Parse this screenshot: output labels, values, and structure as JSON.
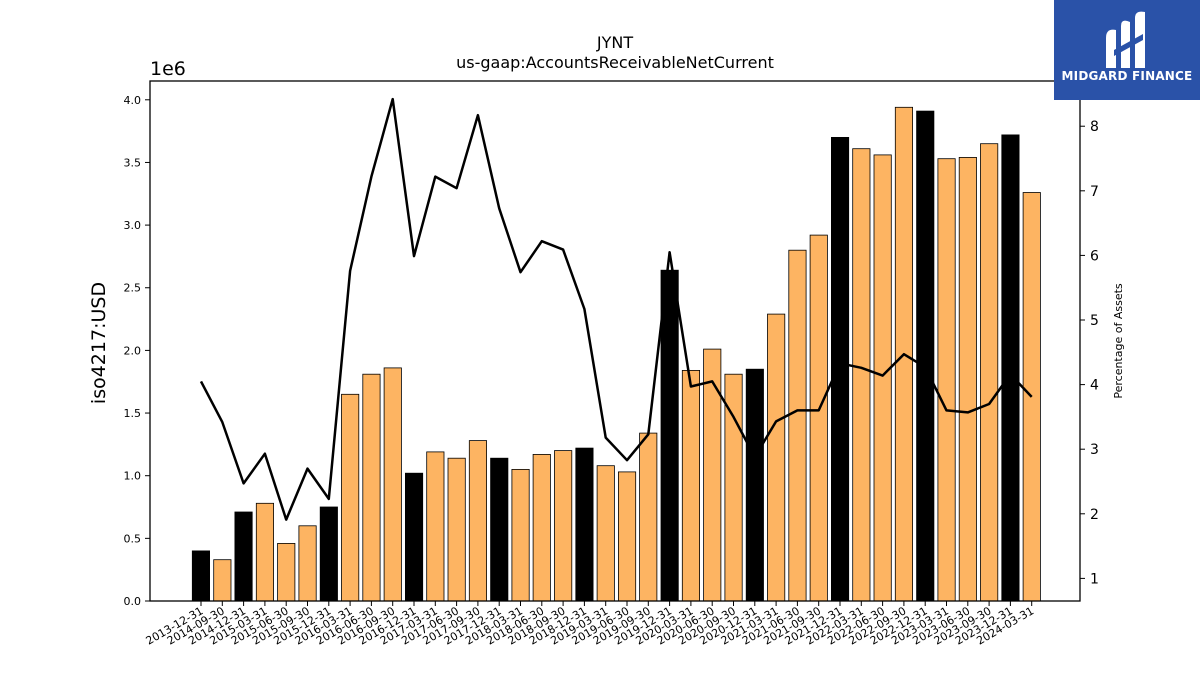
{
  "brand": {
    "name": "MIDGARD FINANCE",
    "background": "#2a52a8"
  },
  "chart_data": {
    "type": "bar",
    "title": "JYNT",
    "subtitle": "us-gaap:AccountsReceivableNetCurrent",
    "ylabel": "iso4217:USD",
    "y2label": "Percentage of Assets",
    "y_offset_text": "1e6",
    "ylim": [
      0,
      4.15
    ],
    "y2lim": [
      0.65,
      8.7
    ],
    "yticks": [
      "0.0",
      "0.5",
      "1.0",
      "1.5",
      "2.0",
      "2.5",
      "3.0",
      "3.5",
      "4.0"
    ],
    "y2ticks": [
      "1",
      "2",
      "3",
      "4",
      "5",
      "6",
      "7",
      "8"
    ],
    "colors": {
      "annual": "#000000",
      "quarter": "#fdb462",
      "line": "#000000"
    },
    "categories": [
      "2013-12-31",
      "2014-09-30",
      "2014-12-31",
      "2015-03-31",
      "2015-06-30",
      "2015-09-30",
      "2015-12-31",
      "2016-03-31",
      "2016-06-30",
      "2016-09-30",
      "2016-12-31",
      "2017-03-31",
      "2017-06-30",
      "2017-09-30",
      "2017-12-31",
      "2018-03-31",
      "2018-06-30",
      "2018-09-30",
      "2018-12-31",
      "2019-03-31",
      "2019-06-30",
      "2019-09-30",
      "2019-12-31",
      "2020-03-31",
      "2020-06-30",
      "2020-09-30",
      "2020-12-31",
      "2021-03-31",
      "2021-06-30",
      "2021-09-30",
      "2021-12-31",
      "2022-03-31",
      "2022-06-30",
      "2022-09-30",
      "2022-12-31",
      "2023-03-31",
      "2023-06-30",
      "2023-09-30",
      "2023-12-31",
      "2024-03-31"
    ],
    "series": [
      {
        "values": [
          0.4,
          0.33,
          0.71,
          0.78,
          0.46,
          0.6,
          0.75,
          1.65,
          1.81,
          1.86,
          1.02,
          1.19,
          1.14,
          1.28,
          1.14,
          1.05,
          1.17,
          1.2,
          1.22,
          1.08,
          1.03,
          1.34,
          2.64,
          1.84,
          2.01,
          1.81,
          1.85,
          2.29,
          2.8,
          2.92,
          3.7,
          3.61,
          3.56,
          3.94,
          3.91,
          3.53,
          3.54,
          3.65,
          3.72,
          3.26
        ],
        "annual": [
          true,
          false,
          true,
          false,
          false,
          false,
          true,
          false,
          false,
          false,
          true,
          false,
          false,
          false,
          true,
          false,
          false,
          false,
          true,
          false,
          false,
          false,
          true,
          false,
          false,
          false,
          true,
          false,
          false,
          false,
          true,
          false,
          false,
          false,
          true,
          false,
          false,
          false,
          true,
          false
        ]
      },
      {
        "axis": "right",
        "values": [
          4.05,
          3.42,
          2.47,
          2.93,
          1.91,
          2.7,
          2.23,
          5.76,
          7.22,
          8.42,
          5.99,
          7.22,
          7.04,
          8.17,
          6.73,
          5.74,
          6.22,
          6.09,
          5.17,
          3.18,
          2.83,
          3.23,
          6.05,
          3.97,
          4.05,
          3.5,
          2.88,
          3.43,
          3.6,
          3.6,
          4.33,
          4.26,
          4.14,
          4.47,
          4.27,
          3.6,
          3.57,
          3.7,
          4.16,
          3.81
        ]
      }
    ]
  }
}
